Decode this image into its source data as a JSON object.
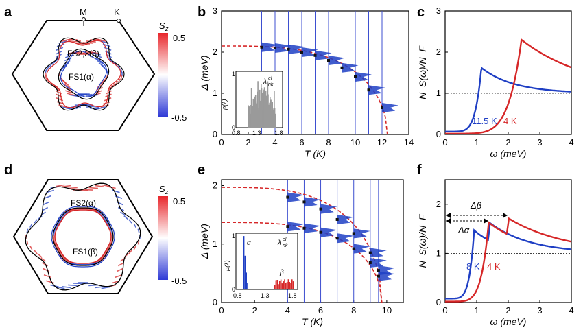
{
  "colors": {
    "red": "#d62728",
    "blue": "#1f3fc4",
    "vline": "#3d4fd0",
    "inset_gray": "#9a9a9a",
    "dash_red": "#d62728"
  },
  "panels": {
    "a": {
      "letter": "a",
      "label_M": "M",
      "label_K": "K",
      "label_fs23": "FS2,3(β)",
      "label_fs1": "FS1(α)",
      "cbar_title": "S",
      "cbar_sub": "z",
      "cbar_max": "0.5",
      "cbar_min": "-0.5"
    },
    "d": {
      "letter": "d",
      "label_fs2": "FS2(α)",
      "label_fs1": "FS1(β)",
      "cbar_title": "S",
      "cbar_sub": "z",
      "cbar_max": "0.5",
      "cbar_min": "-0.5"
    },
    "b": {
      "letter": "b",
      "inset_ylabel": "ρ(λ)",
      "inset_label": "λ",
      "inset_label_sup": "el",
      "inset_label_sub": "nk",
      "inset_yticks": [
        "0",
        "1"
      ],
      "inset_xticks": [
        "0.8",
        "1.3",
        "1.8"
      ]
    },
    "e": {
      "letter": "e",
      "inset_ylabel": "ρ(λ)",
      "inset_label": "λ",
      "inset_label_sup": "el",
      "inset_label_sub": "nk",
      "inset_alpha": "α",
      "inset_beta": "β",
      "inset_yticks": [
        "0",
        "1"
      ],
      "inset_xticks": [
        "0.8",
        "1.3",
        "1.8"
      ]
    },
    "c": {
      "letter": "c"
    },
    "f": {
      "letter": "f",
      "delta_beta": "Δβ",
      "delta_alpha": "Δα"
    }
  },
  "chart_data": [
    {
      "id": "b",
      "type": "scatter",
      "title": "",
      "xlabel": "T (K)",
      "ylabel": "Δ (meV)",
      "xlim": [
        0,
        14
      ],
      "ylim": [
        0,
        3
      ],
      "xticks": [
        "0",
        "2",
        "4",
        "6",
        "8",
        "10",
        "12",
        "14"
      ],
      "yticks": [
        "0",
        "1",
        "2",
        "3"
      ],
      "temperatures": [
        3,
        4,
        5,
        6,
        7,
        8,
        9,
        10,
        11,
        12
      ],
      "gap_centers": [
        2.12,
        2.1,
        2.07,
        2.0,
        1.92,
        1.8,
        1.62,
        1.4,
        1.08,
        0.65
      ],
      "fit": {
        "T_c": 12.4,
        "delta0": 2.15,
        "style": "dashed red"
      }
    },
    {
      "id": "e",
      "type": "scatter",
      "title": "",
      "xlabel": "T (K)",
      "ylabel": "Δ (meV)",
      "xlim": [
        0,
        11
      ],
      "ylim": [
        0,
        2.1
      ],
      "xticks": [
        "0",
        "2",
        "4",
        "6",
        "8",
        "10"
      ],
      "yticks": [
        "0",
        "1",
        "2"
      ],
      "temperatures": [
        4,
        5,
        6,
        7,
        8,
        9,
        9.5
      ],
      "gap_large": [
        1.8,
        1.72,
        1.6,
        1.42,
        1.18,
        0.85,
        0.55
      ],
      "gap_small": [
        1.3,
        1.27,
        1.2,
        1.1,
        0.92,
        0.68,
        0.45
      ],
      "fits": [
        {
          "T_c": 9.7,
          "delta0": 1.97,
          "style": "dashed red"
        },
        {
          "T_c": 9.7,
          "delta0": 1.37,
          "style": "dashed red"
        }
      ]
    },
    {
      "id": "c",
      "type": "line",
      "title": "",
      "xlabel": "ω (meV)",
      "ylabel": "N_S(ω)/N_F",
      "xlim": [
        0,
        4
      ],
      "ylim": [
        0,
        3
      ],
      "xticks": [
        "0",
        "1",
        "2",
        "3",
        "4"
      ],
      "yticks": [
        "0",
        "1",
        "2",
        "3"
      ],
      "series": [
        {
          "name": "11.5 K",
          "color": "blue",
          "peak_omega": 1.15,
          "peak_value": 1.62,
          "base": 0.07
        },
        {
          "name": "4 K",
          "color": "red",
          "peak_omega": 2.42,
          "peak_value": 2.3,
          "base": 0.02
        }
      ],
      "reference_line": 1
    },
    {
      "id": "f",
      "type": "line",
      "title": "",
      "xlabel": "ω (meV)",
      "ylabel": "N_S(ω)/N_F",
      "xlim": [
        0,
        4
      ],
      "ylim": [
        0,
        2.5
      ],
      "xticks": [
        "0",
        "1",
        "2",
        "3",
        "4"
      ],
      "yticks": [
        "0",
        "1",
        "2"
      ],
      "series": [
        {
          "name": "8 K",
          "color": "blue",
          "peaks": [
            [
              0.92,
              1.47
            ],
            [
              1.42,
              1.62
            ]
          ],
          "base": 0.08
        },
        {
          "name": "4 K",
          "color": "red",
          "peaks": [
            [
              1.38,
              1.63
            ],
            [
              2.02,
              1.71
            ]
          ],
          "base": 0.02
        }
      ],
      "reference_line": 1
    }
  ]
}
